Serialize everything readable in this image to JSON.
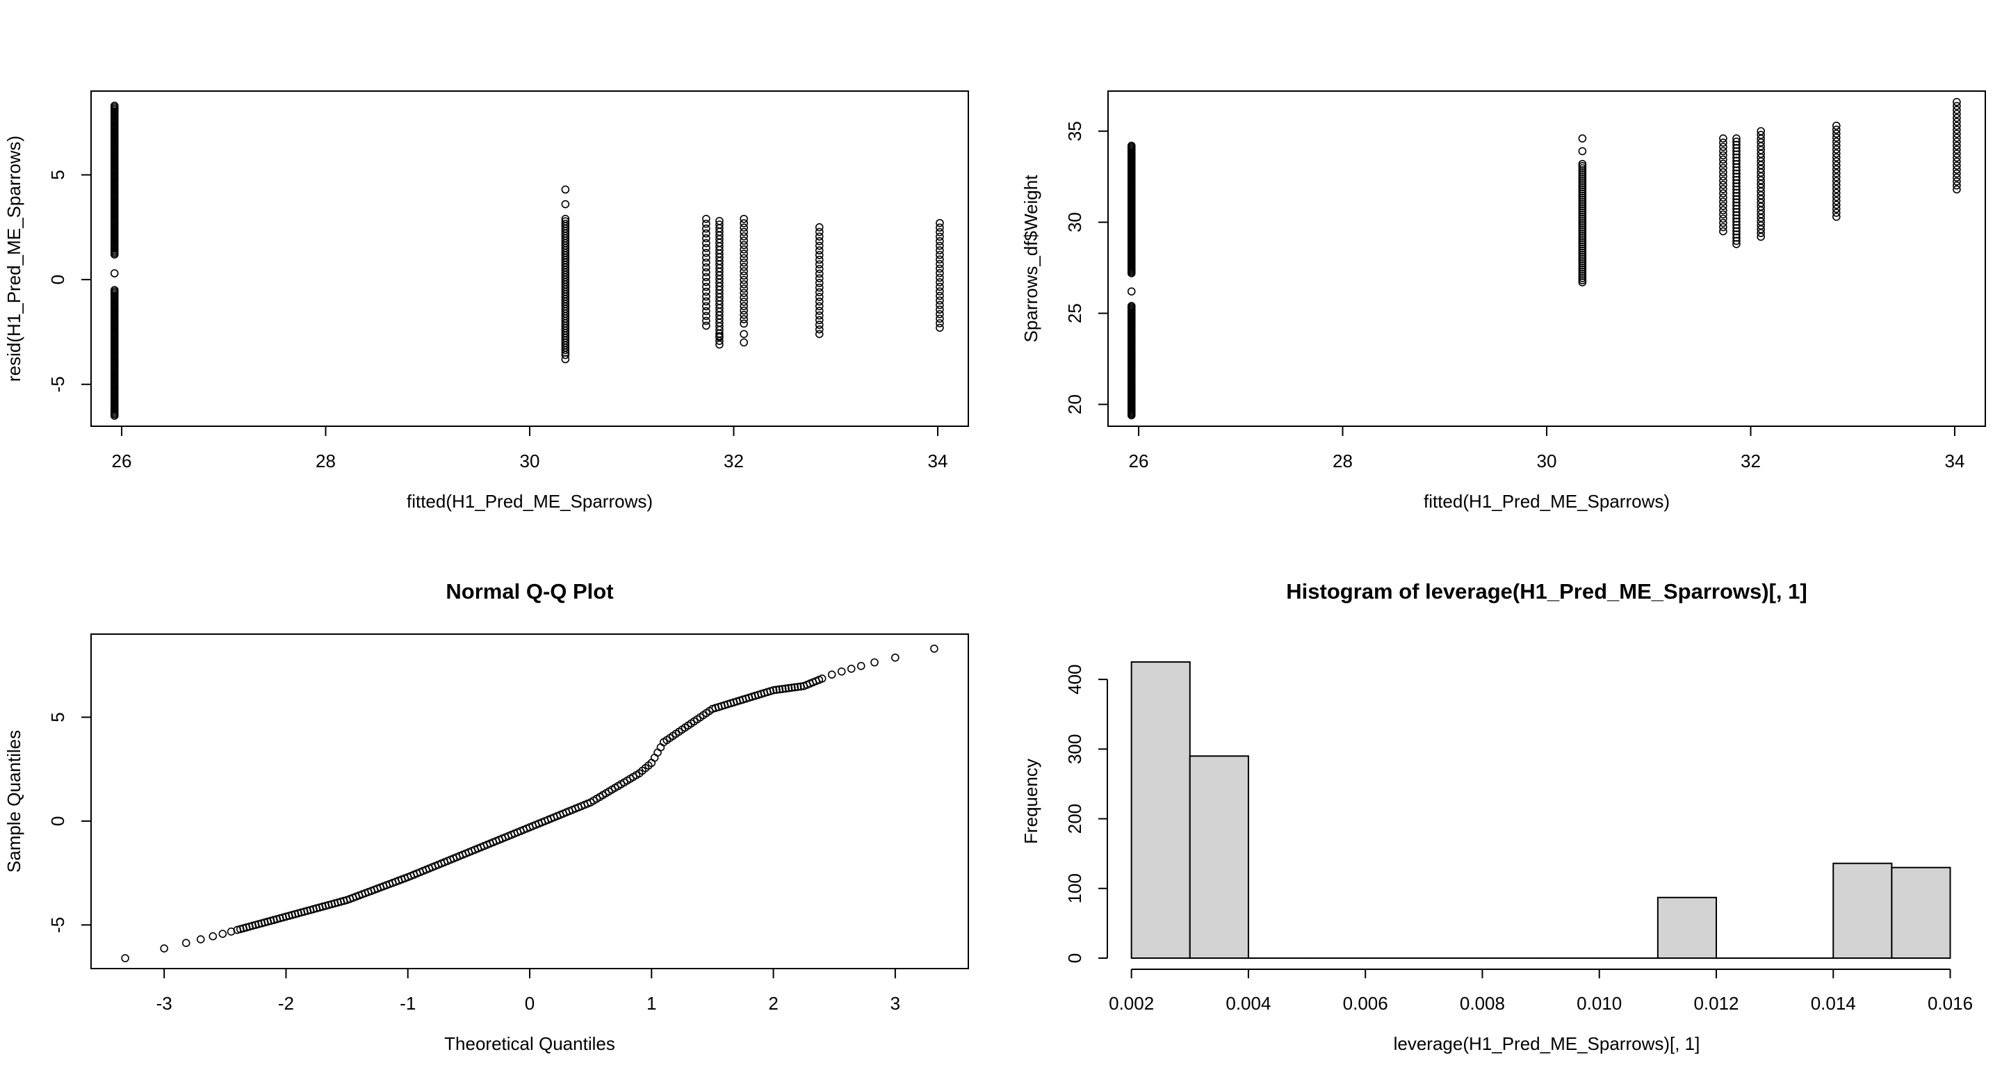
{
  "chart_data": [
    {
      "type": "scatter",
      "title": "",
      "xlabel": "fitted(H1_Pred_ME_Sparrows)",
      "ylabel": "resid(H1_Pred_ME_Sparrows)",
      "xlim": [
        25.7,
        34.3
      ],
      "ylim": [
        -7.0,
        9.0
      ],
      "xticks": [
        "26",
        "28",
        "30",
        "32",
        "34"
      ],
      "yticks": [
        "-5",
        "0",
        "5"
      ],
      "grid": false,
      "groups": [
        {
          "x": 25.93,
          "ranges": [
            [
              1.2,
              8.3
            ],
            [
              -6.5,
              -0.5
            ]
          ],
          "extra": [
            0.3
          ],
          "n": 100
        },
        {
          "x": 30.35,
          "ranges": [
            [
              -3.6,
              2.9
            ]
          ],
          "extra": [
            3.6,
            4.3,
            -3.8
          ],
          "n": 60
        },
        {
          "x": 31.73,
          "ranges": [
            [
              -2.2,
              2.9
            ]
          ],
          "extra": [],
          "n": 30
        },
        {
          "x": 31.86,
          "ranges": [
            [
              -3.1,
              2.8
            ]
          ],
          "extra": [
            -2.7
          ],
          "n": 40
        },
        {
          "x": 32.1,
          "ranges": [
            [
              -2.1,
              2.9
            ]
          ],
          "extra": [
            -3.0,
            -2.6
          ],
          "n": 34
        },
        {
          "x": 32.84,
          "ranges": [
            [
              -2.6,
              2.5
            ]
          ],
          "extra": [],
          "n": 32
        },
        {
          "x": 34.02,
          "ranges": [
            [
              -2.3,
              2.7
            ]
          ],
          "extra": [],
          "n": 32
        }
      ]
    },
    {
      "type": "scatter",
      "title": "",
      "xlabel": "fitted(H1_Pred_ME_Sparrows)",
      "ylabel": "Sparrows_df$Weight",
      "xlim": [
        25.7,
        34.3
      ],
      "ylim": [
        18.8,
        37.2
      ],
      "xticks": [
        "26",
        "28",
        "30",
        "32",
        "34"
      ],
      "yticks": [
        "20",
        "25",
        "30",
        "35"
      ],
      "grid": false,
      "groups": [
        {
          "x": 25.93,
          "ranges": [
            [
              27.2,
              34.2
            ],
            [
              19.4,
              25.4
            ]
          ],
          "extra": [
            26.2
          ],
          "n": 100
        },
        {
          "x": 30.35,
          "ranges": [
            [
              26.7,
              33.2
            ]
          ],
          "extra": [
            33.9,
            34.6
          ],
          "n": 60
        },
        {
          "x": 31.73,
          "ranges": [
            [
              29.5,
              34.6
            ]
          ],
          "extra": [],
          "n": 30
        },
        {
          "x": 31.86,
          "ranges": [
            [
              28.8,
              34.6
            ]
          ],
          "extra": [],
          "n": 40
        },
        {
          "x": 32.1,
          "ranges": [
            [
              29.2,
              35.0
            ]
          ],
          "extra": [],
          "n": 34
        },
        {
          "x": 32.84,
          "ranges": [
            [
              30.3,
              35.3
            ]
          ],
          "extra": [],
          "n": 32
        },
        {
          "x": 34.02,
          "ranges": [
            [
              31.8,
              36.6
            ]
          ],
          "extra": [],
          "n": 32
        }
      ]
    },
    {
      "type": "scatter",
      "title": "Normal Q-Q Plot",
      "xlabel": "Theoretical Quantiles",
      "ylabel": "Sample Quantiles",
      "xlim": [
        -3.6,
        3.6
      ],
      "ylim": [
        -7.1,
        9.0
      ],
      "xticks": [
        "-3",
        "-2",
        "-1",
        "0",
        "1",
        "2",
        "3"
      ],
      "yticks": [
        "-5",
        "0",
        "5"
      ],
      "grid": false,
      "curve": [
        [
          -3.32,
          -6.6
        ],
        [
          -2.5,
          -5.4
        ],
        [
          -2.0,
          -4.6
        ],
        [
          -1.5,
          -3.8
        ],
        [
          -1.0,
          -2.7
        ],
        [
          -0.5,
          -1.5
        ],
        [
          0.0,
          -0.3
        ],
        [
          0.5,
          0.9
        ],
        [
          0.9,
          2.3
        ],
        [
          1.0,
          2.8
        ],
        [
          1.1,
          3.8
        ],
        [
          1.3,
          4.6
        ],
        [
          1.5,
          5.4
        ],
        [
          2.0,
          6.3
        ],
        [
          2.25,
          6.5
        ],
        [
          2.5,
          7.1
        ],
        [
          2.8,
          7.6
        ],
        [
          3.32,
          8.3
        ]
      ]
    },
    {
      "type": "bar",
      "title": "Histogram of leverage(H1_Pred_ME_Sparrows)[, 1]",
      "xlabel": "leverage(H1_Pred_ME_Sparrows)[, 1]",
      "ylabel": "Frequency",
      "xlim": [
        0.0016,
        0.0166
      ],
      "ylim": [
        -15,
        465
      ],
      "xticks": [
        "0.002",
        "0.004",
        "0.006",
        "0.008",
        "0.010",
        "0.012",
        "0.014",
        "0.016"
      ],
      "yticks": [
        "0",
        "100",
        "200",
        "300",
        "400"
      ],
      "grid": false,
      "bin_edges": [
        0.002,
        0.003,
        0.004,
        0.005,
        0.006,
        0.007,
        0.008,
        0.009,
        0.01,
        0.011,
        0.012,
        0.013,
        0.014,
        0.015,
        0.016
      ],
      "values": [
        425,
        290,
        0,
        0,
        0,
        0,
        0,
        0,
        0,
        87,
        0,
        0,
        136,
        130
      ]
    }
  ]
}
